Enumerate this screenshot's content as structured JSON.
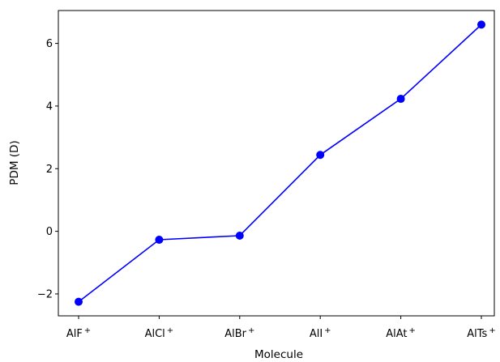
{
  "chart_data": {
    "type": "line",
    "title": "",
    "xlabel": "Molecule",
    "ylabel": "PDM (D)",
    "categories": [
      {
        "base": "AlF",
        "sup": "+"
      },
      {
        "base": "AlCl",
        "sup": "+"
      },
      {
        "base": "AlBr",
        "sup": "+"
      },
      {
        "base": "AlI",
        "sup": "+"
      },
      {
        "base": "AlAt",
        "sup": "+"
      },
      {
        "base": "AlTs",
        "sup": "+"
      }
    ],
    "series": [
      {
        "values": [
          -2.25,
          -0.27,
          -0.14,
          2.44,
          4.23,
          6.6
        ],
        "color": "#0000ff",
        "marker": "circle"
      }
    ],
    "ylim": [
      -2.7,
      7.05
    ],
    "yticks": [
      -2,
      0,
      2,
      4,
      6
    ],
    "ytick_labels": [
      "−2",
      "0",
      "2",
      "4",
      "6"
    ],
    "grid": false,
    "legend": "none"
  }
}
